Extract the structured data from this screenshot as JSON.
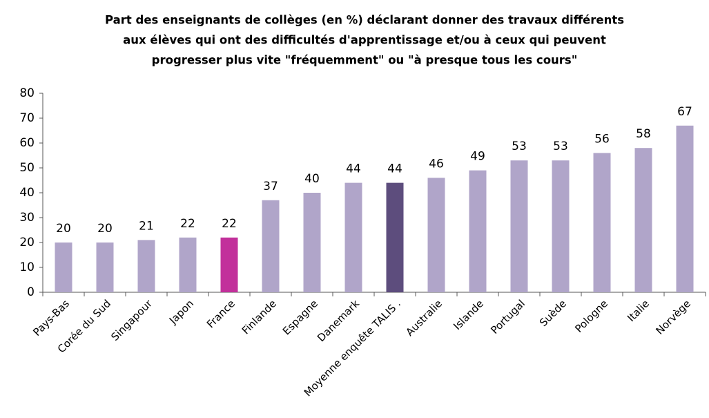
{
  "chart_data": {
    "type": "bar",
    "title": [
      "Part des enseignants de collèges (en %)  déclarant donner des travaux différents",
      "aux élèves qui ont des difficultés d'apprentissage et/ou à ceux qui peuvent",
      "progresser plus vite \"fréquemment\" ou \"à presque tous les cours\""
    ],
    "categories": [
      "Pays-Bas",
      "Corée du Sud",
      "Singapour",
      "Japon",
      "France",
      "Finlande",
      "Espagne",
      "Danemark",
      "Moyenne enquête TALIS  .",
      "Australie",
      "Islande",
      "Portugal",
      "Suède",
      "Pologne",
      "Italie",
      "Norvège"
    ],
    "values": [
      20,
      20,
      21,
      22,
      22,
      37,
      40,
      44,
      44,
      46,
      49,
      53,
      53,
      56,
      58,
      67
    ],
    "colors": [
      "#b0a5c9",
      "#b0a5c9",
      "#b0a5c9",
      "#b0a5c9",
      "#c2309b",
      "#b0a5c9",
      "#b0a5c9",
      "#b0a5c9",
      "#5d4d7d",
      "#b0a5c9",
      "#b0a5c9",
      "#b0a5c9",
      "#b0a5c9",
      "#b0a5c9",
      "#b0a5c9",
      "#b0a5c9"
    ],
    "label_colors": [
      "#7866a8",
      "#7866a8",
      "#7866a8",
      "#7866a8",
      "#c2309b",
      "#7866a8",
      "#7866a8",
      "#7866a8",
      "#4a3d66",
      "#7866a8",
      "#7866a8",
      "#7866a8",
      "#7866a8",
      "#7866a8",
      "#7866a8",
      "#7866a8"
    ],
    "ylim": [
      0,
      80
    ],
    "yticks": [
      0,
      10,
      20,
      30,
      40,
      50,
      60,
      70,
      80
    ],
    "grid": false
  }
}
